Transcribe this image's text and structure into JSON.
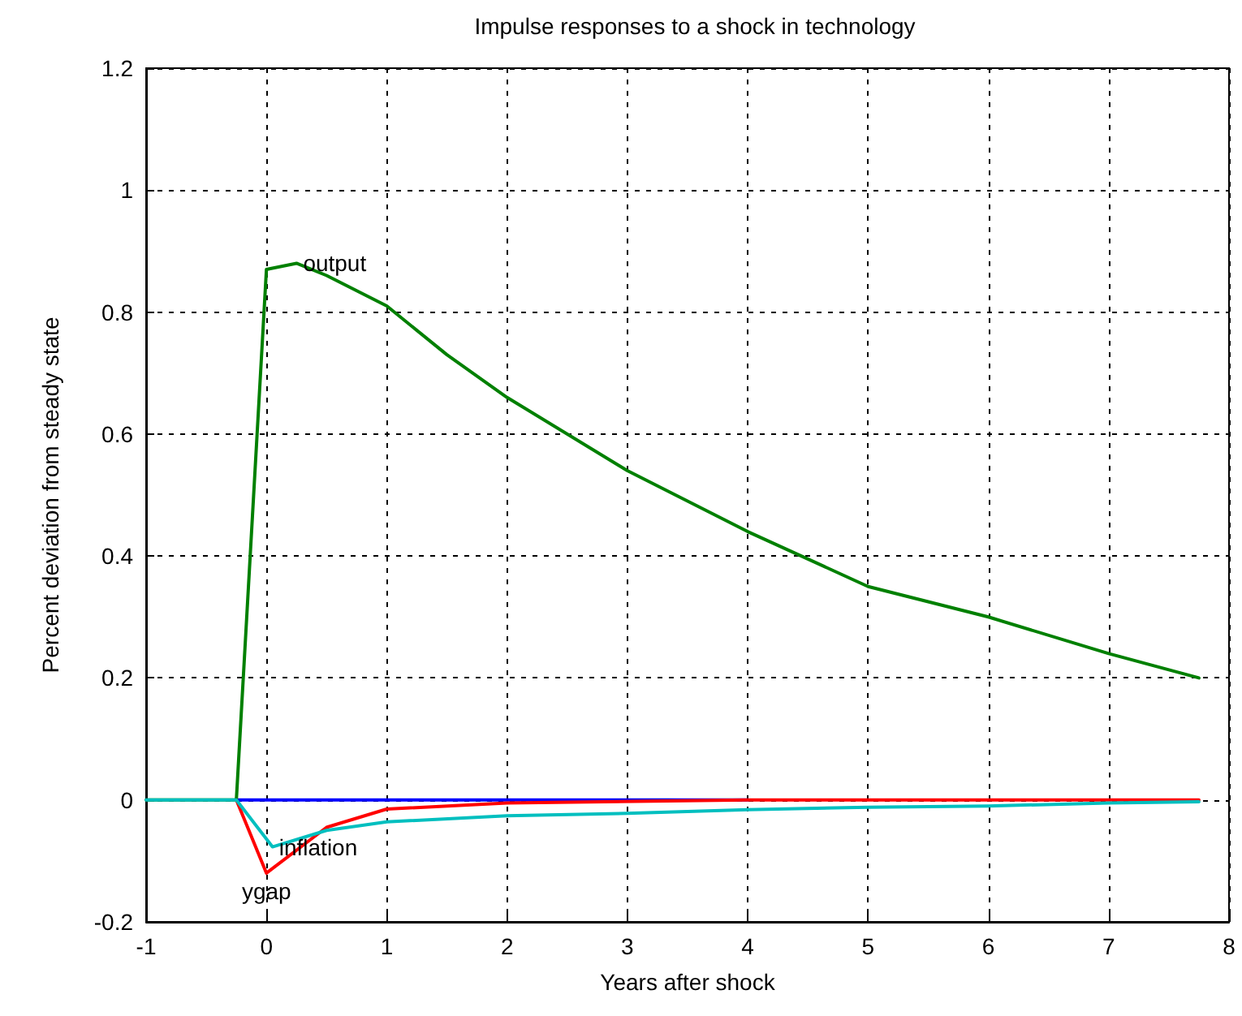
{
  "chart_data": {
    "type": "line",
    "title": "Impulse responses to a shock in technology",
    "xlabel": "Years after shock",
    "ylabel": "Percent deviation from steady state",
    "xlim": [
      -1,
      8
    ],
    "xticks": [
      -1,
      0,
      1,
      2,
      3,
      4,
      5,
      6,
      7,
      8
    ],
    "ylim": [
      -0.2,
      1.2
    ],
    "yticks": [
      -0.2,
      0,
      0.2,
      0.4,
      0.6,
      0.8,
      1,
      1.2
    ],
    "grid": true,
    "marker": "none",
    "line_style": "solid",
    "series": [
      {
        "color": "#0000ff",
        "x": [
          -0.25,
          4
        ],
        "values": [
          0,
          0
        ]
      },
      {
        "name": "output",
        "color": "#008000",
        "x": [
          -1,
          -0.25,
          0,
          0.25,
          0.5,
          1,
          1.5,
          2,
          3,
          4,
          5,
          6,
          7,
          7.75
        ],
        "values": [
          0,
          0,
          0.87,
          0.88,
          0.86,
          0.81,
          0.73,
          0.66,
          0.54,
          0.44,
          0.35,
          0.3,
          0.24,
          0.2
        ]
      },
      {
        "name": "ygap",
        "color": "#ff0000",
        "x": [
          -0.25,
          0,
          0.5,
          1,
          2,
          4,
          7.75
        ],
        "values": [
          0,
          -0.12,
          -0.045,
          -0.015,
          -0.005,
          0,
          0
        ]
      },
      {
        "name": "inflation",
        "color": "#00bfbf",
        "x": [
          -1,
          -0.25,
          0.05,
          0.5,
          1,
          2,
          3,
          4,
          5,
          6,
          7,
          7.75
        ],
        "values": [
          0,
          0,
          -0.077,
          -0.05,
          -0.036,
          -0.026,
          -0.022,
          -0.016,
          -0.012,
          -0.01,
          -0.005,
          -0.003
        ]
      }
    ]
  }
}
